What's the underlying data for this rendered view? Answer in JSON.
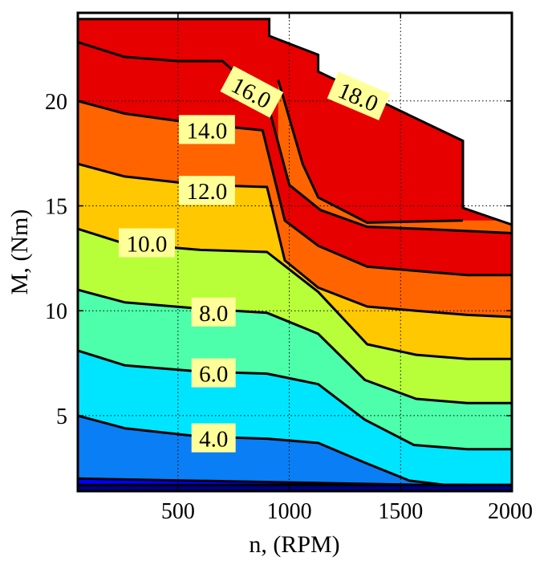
{
  "chart_data": {
    "type": "contour",
    "xlabel": "n, (RPM)",
    "ylabel": "M, (Nm)",
    "xlim": [
      50,
      2000
    ],
    "ylim": [
      1.4,
      24.2
    ],
    "x_ticks": [
      500,
      1000,
      1500,
      2000
    ],
    "x_tick_labels": [
      "500",
      "1000",
      "1500",
      "2000"
    ],
    "y_ticks": [
      5,
      10,
      15,
      20
    ],
    "y_tick_labels": [
      "5",
      "10",
      "15",
      "20"
    ],
    "grid": true,
    "colors": [
      "#0000ff",
      "#0a7ef4",
      "#00e5ff",
      "#4dffaa",
      "#b8ff3a",
      "#ffc800",
      "#ff6400",
      "#e60000"
    ],
    "label_background": "#ffff99",
    "torque_limit": {
      "x": [
        50,
        910,
        910,
        1130,
        1130,
        1780,
        1780,
        2000
      ],
      "y": [
        23.9,
        23.9,
        23.1,
        22.2,
        21.4,
        18.1,
        14.9,
        14.1
      ]
    },
    "levels": [
      {
        "label": "",
        "x": [
          50,
          2000
        ],
        "y": [
          1.7,
          1.7
        ]
      },
      {
        "label": "",
        "x": [
          50,
          1600,
          1800
        ],
        "y": [
          2.0,
          1.7,
          1.7
        ]
      },
      {
        "label": "4.0",
        "x": [
          50,
          260,
          600,
          900,
          1130,
          1330,
          1540,
          1700,
          2000
        ],
        "y": [
          5.0,
          4.4,
          4.0,
          3.9,
          3.7,
          2.8,
          1.9,
          1.7,
          1.7
        ]
      },
      {
        "label": "6.0",
        "x": [
          50,
          260,
          600,
          900,
          1130,
          1340,
          1560,
          1800,
          2000
        ],
        "y": [
          8.1,
          7.4,
          7.1,
          7.0,
          6.5,
          4.8,
          3.6,
          3.4,
          3.4
        ]
      },
      {
        "label": "8.0",
        "x": [
          50,
          260,
          600,
          900,
          1130,
          1340,
          1570,
          1800,
          2000
        ],
        "y": [
          11.0,
          10.4,
          10.1,
          9.9,
          8.9,
          6.7,
          5.8,
          5.6,
          5.6
        ]
      },
      {
        "label": "10.0",
        "x": [
          50,
          260,
          600,
          900,
          1130,
          1350,
          1570,
          1800,
          2000
        ],
        "y": [
          13.9,
          13.2,
          12.9,
          12.8,
          10.9,
          8.4,
          7.9,
          7.7,
          7.7
        ]
      },
      {
        "label": "12.0",
        "x": [
          50,
          260,
          600,
          900,
          980,
          1130,
          1350,
          1570,
          1800,
          2000
        ],
        "y": [
          17.0,
          16.4,
          16.0,
          15.9,
          12.4,
          11.1,
          10.2,
          10.0,
          9.8,
          9.7
        ]
      },
      {
        "label": "14.0",
        "x": [
          50,
          260,
          600,
          880,
          980,
          1130,
          1350,
          1570,
          1800,
          2000
        ],
        "y": [
          20.0,
          19.4,
          18.9,
          18.6,
          14.3,
          13.1,
          12.1,
          11.9,
          11.7,
          11.7
        ]
      },
      {
        "label": "16.0",
        "x": [
          50,
          260,
          500,
          700,
          900,
          1000,
          1140,
          1350,
          1600,
          1800,
          2000
        ],
        "y": [
          22.8,
          22.1,
          21.9,
          21.9,
          20.0,
          16.0,
          14.8,
          14.0,
          13.9,
          13.8,
          13.7
        ]
      },
      {
        "label": "18.0",
        "x": [
          950,
          1060,
          1130,
          1350,
          1780
        ],
        "y": [
          21.0,
          17.0,
          15.4,
          14.2,
          14.3
        ]
      }
    ],
    "contour_labels": [
      {
        "text": "16.0",
        "x": 830,
        "y": 20.4,
        "rotate": 28
      },
      {
        "text": "18.0",
        "x": 1310,
        "y": 20.2,
        "rotate": 23
      },
      {
        "text": "14.0",
        "x": 630,
        "y": 18.6,
        "rotate": 0
      },
      {
        "text": "12.0",
        "x": 630,
        "y": 15.7,
        "rotate": 0
      },
      {
        "text": "10.0",
        "x": 360,
        "y": 13.2,
        "rotate": 0
      },
      {
        "text": "8.0",
        "x": 660,
        "y": 9.9,
        "rotate": 0
      },
      {
        "text": "6.0",
        "x": 660,
        "y": 7.0,
        "rotate": 0
      },
      {
        "text": "4.0",
        "x": 660,
        "y": 3.9,
        "rotate": 0
      }
    ]
  }
}
